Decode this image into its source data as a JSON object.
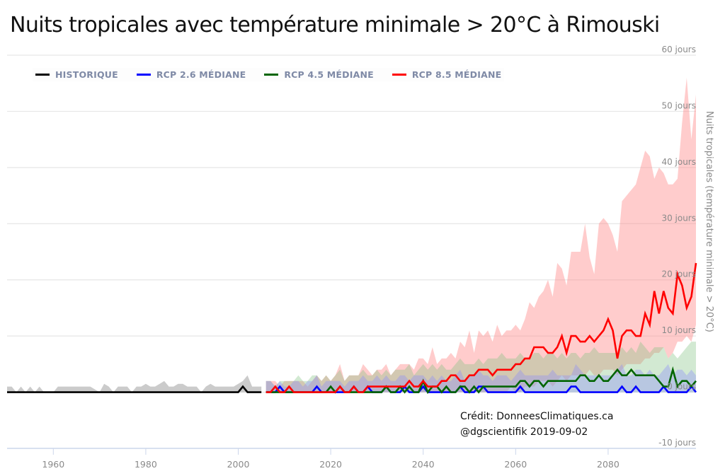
{
  "chart_data": {
    "type": "area",
    "title": "Nuits tropicales avec température minimale > 20°C à Rimouski",
    "xlabel": "",
    "ylabel": "Nuits tropicales (température minimale > 20°C)",
    "xlim": [
      1950,
      2099
    ],
    "ylim": [
      -10,
      60
    ],
    "x_ticks": [
      1960,
      1980,
      2000,
      2020,
      2040,
      2060,
      2080
    ],
    "y_ticks": [
      {
        "value": 60,
        "label": "60 jours"
      },
      {
        "value": 50,
        "label": "50 jours"
      },
      {
        "value": 40,
        "label": "40 jours"
      },
      {
        "value": 30,
        "label": "30 jours"
      },
      {
        "value": 20,
        "label": "20 jours"
      },
      {
        "value": 10,
        "label": "10 jours"
      },
      {
        "value": 0,
        "label": "0 jours"
      },
      {
        "value": -10,
        "label": "-10 jours"
      }
    ],
    "grid": true,
    "legend_position": "top-left",
    "legend": [
      {
        "key": "historique",
        "label": "HISTORIQUE",
        "color": "#000000"
      },
      {
        "key": "rcp26",
        "label": "RCP 2.6 MÉDIANE",
        "color": "#0000ff"
      },
      {
        "key": "rcp45",
        "label": "RCP 4.5 MÉDIANE",
        "color": "#006400"
      },
      {
        "key": "rcp85",
        "label": "RCP 8.5 MÉDIANE",
        "color": "#ff0000"
      }
    ],
    "series": [
      {
        "name": "HISTORIQUE",
        "key": "historique",
        "color": "#000000",
        "band_color": "#a0a0a0",
        "x_start": 1950,
        "median": [
          0,
          0,
          0,
          0,
          0,
          0,
          0,
          0,
          0,
          0,
          0,
          0,
          0,
          0,
          0,
          0,
          0,
          0,
          0,
          0,
          0,
          0,
          0,
          0,
          0,
          0,
          0,
          0,
          0,
          0,
          0,
          0,
          0,
          0,
          0,
          0,
          0,
          0,
          0,
          0,
          0,
          0,
          0,
          0,
          0,
          0,
          0,
          0,
          0,
          0,
          0,
          1,
          0,
          0,
          0,
          0
        ],
        "upper": [
          1,
          1,
          0,
          1,
          0,
          1,
          0,
          1,
          0,
          0,
          0,
          1,
          1,
          1,
          1,
          1,
          1,
          1,
          1,
          0.5,
          0,
          1.5,
          1,
          0,
          1,
          1,
          1,
          0,
          1,
          1,
          1.5,
          1,
          1,
          1.5,
          2,
          1,
          1,
          1.5,
          1.5,
          1,
          1,
          1,
          0,
          1,
          1.5,
          1,
          1,
          1,
          1,
          1,
          1.5,
          2,
          3,
          1,
          1,
          1
        ],
        "lower": [
          0,
          0,
          0,
          0,
          0,
          0,
          0,
          0,
          0,
          0,
          0,
          0,
          0,
          0,
          0,
          0,
          0,
          0,
          0,
          0,
          0,
          0,
          0,
          0,
          0,
          0,
          0,
          0,
          0,
          0,
          0,
          0,
          0,
          0,
          0,
          0,
          0,
          0,
          0,
          0,
          0,
          0,
          0,
          0,
          0,
          0,
          0,
          0,
          0,
          0,
          0,
          0,
          0,
          0,
          0,
          0
        ]
      },
      {
        "name": "RCP 2.6 MÉDIANE",
        "key": "rcp26",
        "color": "#0000ff",
        "band_color": "#8a8aff",
        "x_start": 2006,
        "median": [
          0,
          0,
          0,
          1,
          0,
          0,
          0,
          0,
          0,
          0,
          0,
          1,
          0,
          0,
          0,
          0,
          0,
          0,
          0,
          1,
          0,
          0,
          1,
          0,
          0,
          0,
          1,
          0,
          0,
          0,
          1,
          0,
          0,
          0,
          1,
          0,
          0,
          0,
          0,
          0,
          0,
          0,
          1,
          0,
          0,
          0,
          1,
          1,
          0,
          0,
          0,
          0,
          0,
          0,
          0,
          1,
          0,
          0,
          0,
          0,
          0,
          0,
          0,
          0,
          0,
          0,
          1,
          1,
          0,
          0,
          0,
          0,
          0,
          -1,
          0,
          0,
          0,
          1,
          0,
          0,
          1,
          0,
          0,
          0,
          0,
          0,
          1,
          0,
          0,
          0,
          0,
          0,
          1,
          0
        ],
        "upper": [
          2,
          2,
          1,
          2,
          1,
          1,
          2,
          2,
          1,
          2,
          2,
          3,
          1,
          2,
          2,
          2,
          2,
          1,
          2,
          2,
          2,
          3,
          2,
          2,
          3,
          2,
          3,
          2,
          2,
          3,
          3,
          2,
          3,
          3,
          3,
          2,
          3,
          2,
          3,
          2,
          2,
          3,
          4,
          2,
          3,
          3,
          4,
          3,
          3,
          2,
          3,
          3,
          3,
          2,
          3,
          4,
          3,
          3,
          3,
          3,
          3,
          3,
          4,
          3,
          3,
          3,
          3,
          5,
          4,
          3,
          3,
          3,
          3,
          3,
          3,
          3,
          4,
          5,
          3,
          3,
          4,
          4,
          3,
          4,
          3,
          3,
          4,
          5,
          3,
          4,
          4,
          3,
          4,
          3
        ],
        "lower": [
          0,
          0,
          0,
          0,
          0,
          0,
          0,
          0,
          0,
          0,
          0,
          0,
          0,
          0,
          0,
          0,
          0,
          0,
          0,
          0,
          0,
          0,
          0,
          0,
          0,
          0,
          0,
          0,
          0,
          0,
          0,
          0,
          0,
          0,
          0,
          0,
          0,
          0,
          0,
          0,
          0,
          0,
          0,
          0,
          0,
          0,
          0,
          0,
          0,
          0,
          0,
          0,
          0,
          0,
          0,
          0,
          0,
          0,
          0,
          0,
          0,
          0,
          0,
          0,
          0,
          0,
          0,
          0,
          0,
          0,
          0,
          0,
          0,
          0,
          0,
          0,
          0,
          0,
          0,
          0,
          0,
          0,
          0,
          0,
          0,
          0,
          0,
          0,
          0,
          0,
          0,
          0,
          0,
          0
        ]
      },
      {
        "name": "RCP 4.5 MÉDIANE",
        "key": "rcp45",
        "color": "#006400",
        "band_color": "#7fbf7f",
        "x_start": 2006,
        "median": [
          0,
          0,
          0,
          0,
          0,
          0,
          0,
          0,
          0,
          0,
          0,
          0,
          0,
          0,
          1,
          0,
          1,
          0,
          0,
          0,
          0,
          0,
          0,
          0,
          0,
          0,
          1,
          0,
          0,
          1,
          0,
          1,
          0,
          0,
          2,
          0,
          1,
          1,
          0,
          1,
          0,
          0,
          1,
          1,
          0,
          1,
          0,
          1,
          1,
          1,
          1,
          1,
          1,
          1,
          1,
          2,
          2,
          1,
          2,
          2,
          1,
          2,
          2,
          2,
          2,
          2,
          2,
          2,
          3,
          3,
          2,
          2,
          3,
          2,
          2,
          3,
          4,
          3,
          3,
          4,
          3,
          3,
          3,
          3,
          3,
          2,
          1,
          1,
          4,
          1,
          2,
          2,
          1,
          2
        ],
        "upper": [
          2,
          2,
          1,
          2,
          2,
          2,
          2,
          3,
          2,
          2,
          3,
          3,
          2,
          3,
          2,
          3,
          4,
          2,
          3,
          3,
          3,
          4,
          3,
          3,
          4,
          3,
          4,
          3,
          4,
          4,
          4,
          5,
          3,
          4,
          5,
          4,
          5,
          4,
          5,
          4,
          4,
          5,
          6,
          5,
          5,
          5,
          6,
          5,
          6,
          6,
          6,
          7,
          6,
          6,
          6,
          7,
          6,
          6,
          7,
          7,
          6,
          7,
          7,
          6,
          7,
          6,
          7,
          7,
          6,
          7,
          7,
          8,
          7,
          7,
          7,
          7,
          7,
          8,
          7,
          8,
          7,
          9,
          8,
          7,
          8,
          8,
          8,
          6,
          7,
          6,
          7,
          8,
          9,
          9
        ],
        "lower": [
          0,
          0,
          0,
          0,
          0,
          0,
          0,
          0,
          0,
          0,
          0,
          0,
          0,
          0,
          0,
          0,
          0,
          0,
          0,
          0,
          0,
          0,
          0,
          0,
          0,
          0,
          0,
          0,
          0,
          0,
          0,
          0,
          0,
          0,
          0,
          0,
          0,
          0,
          0,
          0,
          0,
          0,
          0,
          0,
          0,
          0,
          0,
          0,
          0,
          0,
          0,
          0,
          0,
          0,
          0,
          0,
          0,
          0,
          0,
          0,
          0,
          0,
          0,
          0,
          0,
          0,
          0,
          0,
          0,
          0,
          0,
          0,
          0,
          0,
          0,
          0,
          0,
          0,
          0,
          0,
          0,
          0,
          0,
          0,
          0,
          0,
          0,
          0,
          0,
          0,
          0,
          0,
          0,
          0
        ]
      },
      {
        "name": "RCP 8.5 MÉDIANE",
        "key": "rcp85",
        "color": "#ff0000",
        "band_color": "#ff8f8f",
        "x_start": 2006,
        "median": [
          0,
          0,
          1,
          0,
          0,
          1,
          0,
          0,
          0,
          0,
          0,
          0,
          0,
          0,
          0,
          0,
          1,
          0,
          0,
          1,
          0,
          0,
          1,
          1,
          1,
          1,
          1,
          1,
          1,
          1,
          1,
          2,
          1,
          1,
          2,
          1,
          1,
          1,
          2,
          2,
          3,
          3,
          2,
          2,
          3,
          3,
          4,
          4,
          4,
          3,
          4,
          4,
          4,
          4,
          5,
          5,
          6,
          6,
          8,
          8,
          8,
          7,
          7,
          8,
          10,
          7,
          10,
          10,
          9,
          9,
          10,
          9,
          10,
          11,
          13,
          11,
          6,
          10,
          11,
          11,
          10,
          10,
          14,
          12,
          18,
          14,
          18,
          15,
          14,
          21,
          19,
          15,
          17,
          23
        ],
        "upper": [
          2,
          2,
          2,
          1,
          2,
          2,
          2,
          2,
          2,
          1,
          2,
          3,
          2,
          3,
          2,
          3,
          5,
          2,
          3,
          3,
          3,
          5,
          4,
          3,
          4,
          4,
          5,
          3,
          4,
          5,
          5,
          5,
          4,
          6,
          6,
          5,
          8,
          5,
          6,
          6,
          7,
          6,
          9,
          8,
          11,
          7,
          11,
          10,
          11,
          9,
          12,
          10,
          11,
          11,
          12,
          11,
          13,
          16,
          15,
          17,
          18,
          20,
          17,
          23,
          22,
          19,
          25,
          25,
          25,
          30,
          24,
          21,
          30,
          31,
          30,
          28,
          25,
          34,
          35,
          36,
          37,
          40,
          43,
          42,
          38,
          40,
          39,
          37,
          37,
          38,
          48,
          56,
          45,
          53
        ],
        "lower": [
          0,
          0,
          0,
          0,
          0,
          0,
          0,
          0,
          0,
          0,
          0,
          0,
          0,
          0,
          0,
          0,
          0,
          0,
          0,
          0,
          0,
          0,
          0,
          0,
          0,
          0,
          0,
          0,
          0,
          0,
          0,
          0,
          0,
          0,
          0,
          0,
          0,
          0,
          0,
          0,
          0,
          0,
          0,
          0,
          0,
          0,
          0,
          0,
          0,
          0,
          0,
          0,
          0,
          1,
          0,
          0,
          1,
          1,
          1,
          2,
          2,
          2,
          1,
          2,
          3,
          2,
          3,
          3,
          3,
          3,
          4,
          3,
          3,
          4,
          4,
          4,
          3,
          4,
          5,
          5,
          5,
          5,
          6,
          6,
          7,
          7,
          8,
          6,
          7,
          9,
          9,
          10,
          9,
          12
        ]
      }
    ],
    "annotations": [
      {
        "text": "Crédit: DonneesClimatiques.ca"
      },
      {
        "text": "@dgscientifik 2019-09-02"
      }
    ]
  }
}
